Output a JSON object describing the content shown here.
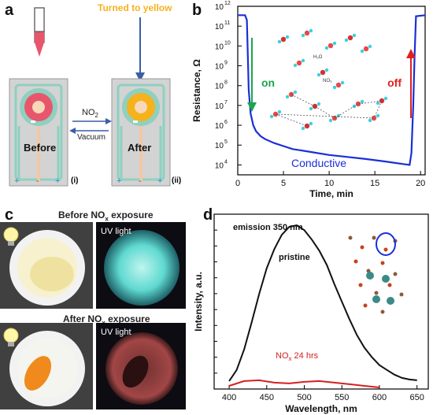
{
  "panels": {
    "a": {
      "letter": "a",
      "top_label": "Turned to yellow",
      "arrow_top_label": "NO",
      "arrow_top_sub": "2",
      "arrow_bottom_label": "Vacuum",
      "left_label": "Before",
      "right_label": "After",
      "left_index": "(i)",
      "right_index": "(ii)",
      "plus": "+",
      "minus": "-",
      "colors": {
        "pink": "#e8566c",
        "yellow": "#f5b21c",
        "teal": "#8fd0c0",
        "gray": "#d3d3d3",
        "arrow_blue": "#3a5fa8"
      }
    },
    "b": {
      "letter": "b",
      "on_label": "on",
      "off_label": "off",
      "conductive_label": "Conductive",
      "molecule_labels": [
        "H₂O",
        "NO₃"
      ],
      "colors": {
        "line": "#1a2fd6",
        "on": "#1aa64b",
        "off": "#e02020"
      }
    },
    "c": {
      "letter": "c",
      "top_caption": "Before NO",
      "top_caption_sub": "x",
      "top_caption_tail": " exposure",
      "bottom_caption": "After NO",
      "bottom_caption_sub": "x",
      "bottom_caption_tail": " exposure",
      "uv_label_top": "UV light",
      "uv_label_bottom": "UV light"
    },
    "d": {
      "letter": "d",
      "emission_label": "emission 350 nm",
      "pristine_label": "pristine",
      "nox_label": "NO",
      "nox_sub": "x",
      "nox_tail": " 24 hrs"
    }
  },
  "chart_data": [
    {
      "type": "line",
      "xlabel": "Time, min",
      "ylabel": "Resistance, Ω",
      "xlim": [
        0,
        20.5
      ],
      "ylim_log10": [
        3.5,
        12
      ],
      "y_scale": "log",
      "x_ticks": [
        0,
        5,
        10,
        15,
        20
      ],
      "y_ticks": [
        "10^4",
        "10^5",
        "10^6",
        "10^7",
        "10^8",
        "10^9",
        "10^10",
        "10^11",
        "10^12"
      ],
      "series": [
        {
          "x": [
            0,
            0.5,
            0.8,
            1.0,
            1.1,
            1.2,
            1.4,
            1.7,
            2.0,
            2.5,
            3,
            4,
            5,
            6,
            8,
            10,
            12,
            14,
            16,
            18,
            18.8,
            19.0,
            19.2,
            19.35,
            19.5,
            20.5
          ],
          "y_log10": [
            11.55,
            11.55,
            11.55,
            11.3,
            9.5,
            7.8,
            6.6,
            6.0,
            5.7,
            5.45,
            5.3,
            5.1,
            4.95,
            4.8,
            4.65,
            4.5,
            4.4,
            4.3,
            4.18,
            4.05,
            4.0,
            4.6,
            7.0,
            9.5,
            11.5,
            11.55
          ]
        }
      ]
    },
    {
      "type": "line",
      "xlabel": "Wavelength, nm",
      "ylabel": "Intensity, a.u.",
      "xlim": [
        380,
        665
      ],
      "ylim": [
        0,
        1.1
      ],
      "x_ticks": [
        400,
        450,
        500,
        550,
        600,
        650
      ],
      "series": [
        {
          "name": "pristine",
          "x": [
            400,
            410,
            420,
            430,
            440,
            450,
            460,
            470,
            480,
            490,
            500,
            510,
            520,
            530,
            540,
            550,
            560,
            570,
            580,
            590,
            600,
            610,
            620,
            630,
            640,
            650
          ],
          "y": [
            0.05,
            0.12,
            0.25,
            0.42,
            0.6,
            0.76,
            0.88,
            0.97,
            1.02,
            1.03,
            1.0,
            0.94,
            0.87,
            0.78,
            0.66,
            0.55,
            0.44,
            0.34,
            0.26,
            0.2,
            0.15,
            0.12,
            0.09,
            0.07,
            0.06,
            0.055
          ]
        },
        {
          "name": "NOx 24 hrs",
          "x": [
            400,
            420,
            440,
            460,
            480,
            500,
            520,
            540,
            560,
            580,
            600
          ],
          "y": [
            0.02,
            0.05,
            0.055,
            0.04,
            0.035,
            0.045,
            0.05,
            0.04,
            0.03,
            0.02,
            0.01
          ]
        }
      ]
    }
  ]
}
